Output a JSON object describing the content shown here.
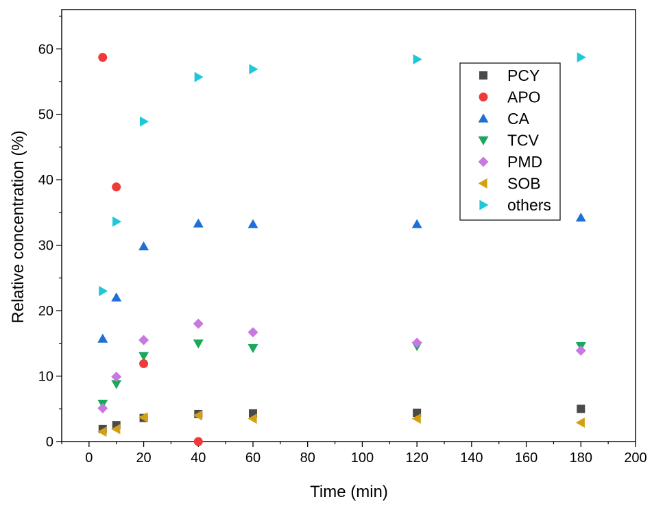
{
  "chart_data": {
    "type": "scatter",
    "title": "",
    "xlabel": "Time (min)",
    "ylabel": "Relative concentration (%)",
    "xlim": [
      -10,
      200
    ],
    "ylim": [
      0,
      66
    ],
    "x_ticks": [
      0,
      20,
      40,
      60,
      80,
      100,
      120,
      140,
      160,
      180,
      200
    ],
    "y_ticks": [
      0,
      10,
      20,
      30,
      40,
      50,
      60
    ],
    "grid": false,
    "legend_position": "top-right",
    "series": [
      {
        "name": "PCY",
        "marker": "square",
        "color": "#4a4a4a",
        "x": [
          5,
          10,
          20,
          40,
          60,
          120,
          180
        ],
        "y": [
          1.9,
          2.5,
          3.6,
          4.2,
          4.3,
          4.4,
          5.0
        ]
      },
      {
        "name": "APO",
        "marker": "circle",
        "color": "#f03a3a",
        "x": [
          5,
          10,
          20,
          40
        ],
        "y": [
          58.7,
          38.9,
          11.9,
          0.0
        ]
      },
      {
        "name": "CA",
        "marker": "triangle-up",
        "color": "#1f6fd6",
        "x": [
          5,
          10,
          20,
          40,
          60,
          120,
          180
        ],
        "y": [
          15.7,
          22.0,
          29.8,
          33.3,
          33.2,
          33.2,
          34.2
        ]
      },
      {
        "name": "TCV",
        "marker": "triangle-down",
        "color": "#1aa85a",
        "x": [
          5,
          10,
          20,
          40,
          60,
          120,
          180
        ],
        "y": [
          5.8,
          8.8,
          13.1,
          15.0,
          14.3,
          14.6,
          14.6
        ]
      },
      {
        "name": "PMD",
        "marker": "diamond",
        "color": "#c879e0",
        "x": [
          5,
          10,
          20,
          40,
          60,
          120,
          180
        ],
        "y": [
          5.1,
          9.9,
          15.5,
          18.0,
          16.7,
          15.1,
          13.9
        ]
      },
      {
        "name": "SOB",
        "marker": "triangle-left",
        "color": "#d4a012",
        "x": [
          5,
          10,
          20,
          40,
          60,
          120,
          180
        ],
        "y": [
          1.5,
          1.9,
          3.7,
          4.0,
          3.5,
          3.5,
          2.9
        ]
      },
      {
        "name": "others",
        "marker": "triangle-right",
        "color": "#1ec8d8",
        "x": [
          5,
          10,
          20,
          40,
          60,
          120,
          180
        ],
        "y": [
          23.0,
          33.6,
          48.9,
          55.7,
          56.9,
          58.4,
          58.7
        ]
      }
    ]
  }
}
